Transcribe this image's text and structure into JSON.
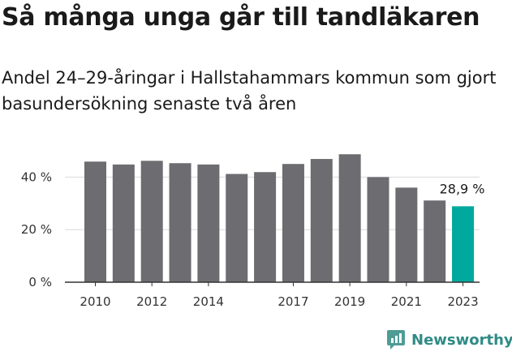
{
  "title": "Så många unga går till tandläkaren",
  "subtitle": "Andel 24–29-åringar i Hallstahammars kommun som gjort basundersökning senaste två åren",
  "brand": "Newsworthy",
  "colors": {
    "bar": "#6d6c70",
    "highlight": "#00a99d",
    "grid": "#d9d9d9",
    "axis": "#333333",
    "brand": "#2f8b85"
  },
  "chart_data": {
    "type": "bar",
    "title": "Så många unga går till tandläkaren",
    "subtitle": "Andel 24–29-åringar i Hallstahammars kommun som gjort basundersökning senaste två åren",
    "xlabel": "",
    "ylabel": "",
    "categories": [
      "2010",
      "2011",
      "2012",
      "2013",
      "2014",
      "2015",
      "2016",
      "2017",
      "2018",
      "2019",
      "2020",
      "2021",
      "2022",
      "2023"
    ],
    "values": [
      45.9,
      44.8,
      46.2,
      45.3,
      44.8,
      41.2,
      41.9,
      45.0,
      46.9,
      48.7,
      40.0,
      36.0,
      31.1,
      28.9
    ],
    "x_tick_labels": [
      "2010",
      "2012",
      "2014",
      "2017",
      "2019",
      "2021",
      "2023"
    ],
    "y_ticks": [
      0,
      20,
      40
    ],
    "y_tick_labels": [
      "0 %",
      "20 %",
      "40 %"
    ],
    "ylim": [
      0,
      50
    ],
    "grid": true,
    "highlight_category": "2023",
    "data_labels": [
      {
        "category": "2023",
        "text": "28,9 %"
      }
    ]
  }
}
